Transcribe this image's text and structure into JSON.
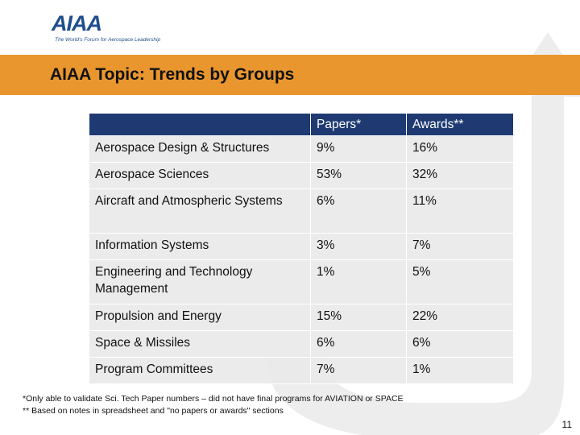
{
  "logo": {
    "text": "AIAA",
    "tagline": "The World's Forum for Aerospace Leadership"
  },
  "title": "AIAA Topic: Trends by Groups",
  "table": {
    "headers": [
      "",
      "Papers*",
      "Awards**"
    ],
    "rows": [
      {
        "group": "Aerospace Design & Structures",
        "papers": "9%",
        "awards": "16%"
      },
      {
        "group": "Aerospace Sciences",
        "papers": "53%",
        "awards": "32%"
      },
      {
        "group": "Aircraft and Atmospheric Systems",
        "papers": "6%",
        "awards": "11%"
      },
      {
        "group": "Information Systems",
        "papers": "3%",
        "awards": "7%"
      },
      {
        "group": "Engineering and Technology Management",
        "papers": "1%",
        "awards": "5%"
      },
      {
        "group": "Propulsion and Energy",
        "papers": "15%",
        "awards": "22%"
      },
      {
        "group": "Space & Missiles",
        "papers": "6%",
        "awards": "6%"
      },
      {
        "group": "Program Committees",
        "papers": "7%",
        "awards": "1%"
      }
    ]
  },
  "footnotes": [
    "*Only able to validate Sci. Tech Paper numbers – did not have final programs for AVIATION or SPACE",
    "** Based on notes in spreadsheet and \"no papers or awards\" sections"
  ],
  "page_number": "11",
  "colors": {
    "band": "#e9962e",
    "header": "#1f3a73",
    "logo": "#1f4e8c"
  }
}
